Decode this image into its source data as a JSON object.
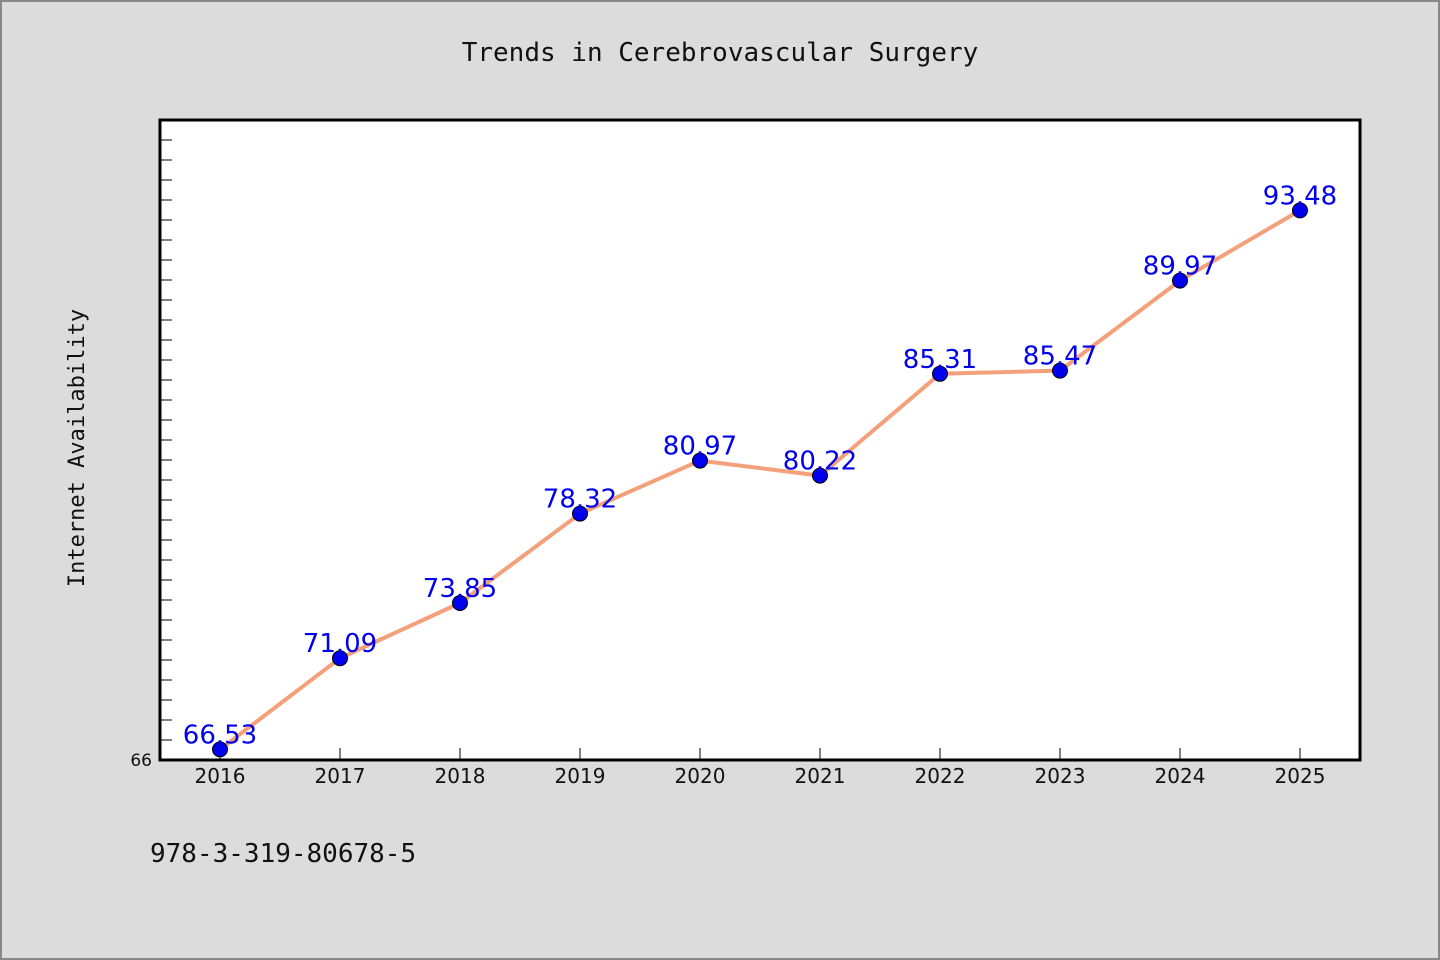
{
  "footnote": "978-3-319-80678-5",
  "colors": {
    "background": "#dcdcdc",
    "line": "#f4a07a",
    "marker": "#0000ee",
    "data_label": "#0000ee"
  },
  "chart_data": {
    "type": "line",
    "title": "Trends in Cerebrovascular Surgery",
    "xlabel": "",
    "ylabel": "Internet Availability",
    "x": [
      "2016",
      "2017",
      "2018",
      "2019",
      "2020",
      "2021",
      "2022",
      "2023",
      "2024",
      "2025"
    ],
    "values": [
      66.53,
      71.09,
      73.85,
      78.32,
      80.97,
      80.22,
      85.31,
      85.47,
      89.97,
      93.48
    ],
    "data_labels": [
      "66.53",
      "71.09",
      "73.85",
      "78.32",
      "80.97",
      "80.22",
      "85.31",
      "85.47",
      "89.97",
      "93.48"
    ],
    "ylim": [
      66,
      98
    ],
    "yticks_labeled": [
      "66"
    ],
    "grid": false,
    "legend": "none"
  }
}
